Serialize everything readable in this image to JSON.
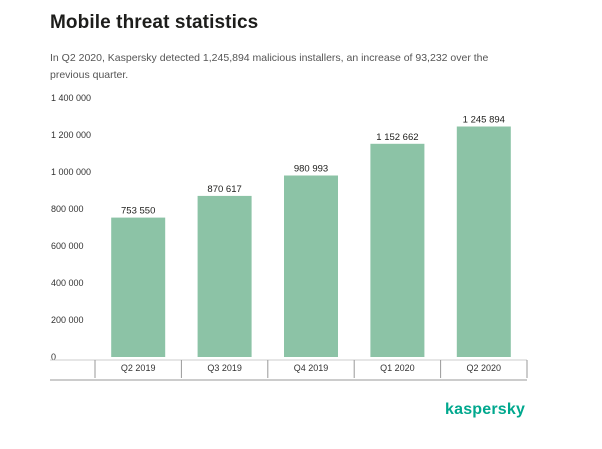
{
  "header": {
    "title": "Mobile threat statistics",
    "subtitle": "In Q2 2020, Kaspersky detected 1,245,894 malicious installers, an increase of 93,232 over the previous quarter."
  },
  "brand": {
    "logo_text": "kaspersky",
    "color": "#00a88e"
  },
  "colors": {
    "bar": "#8cc3a6",
    "axis": "#999999",
    "baseline": "#cccccc"
  },
  "chart_data": {
    "type": "bar",
    "categories": [
      "Q2 2019",
      "Q3 2019",
      "Q4 2019",
      "Q1 2020",
      "Q2 2020"
    ],
    "values": [
      753550,
      870617,
      980993,
      1152662,
      1245894
    ],
    "data_labels": [
      "753 550",
      "870 617",
      "980 993",
      "1 152 662",
      "1 245 894"
    ],
    "ylim": [
      0,
      1400000
    ],
    "yticks": [
      0,
      200000,
      400000,
      600000,
      800000,
      1000000,
      1200000,
      1400000
    ],
    "ytick_labels": [
      "0",
      "200 000",
      "400 000",
      "600 000",
      "800 000",
      "1 000 000",
      "1 200 000",
      "1 400 000"
    ],
    "grid": false,
    "legend": "none"
  }
}
